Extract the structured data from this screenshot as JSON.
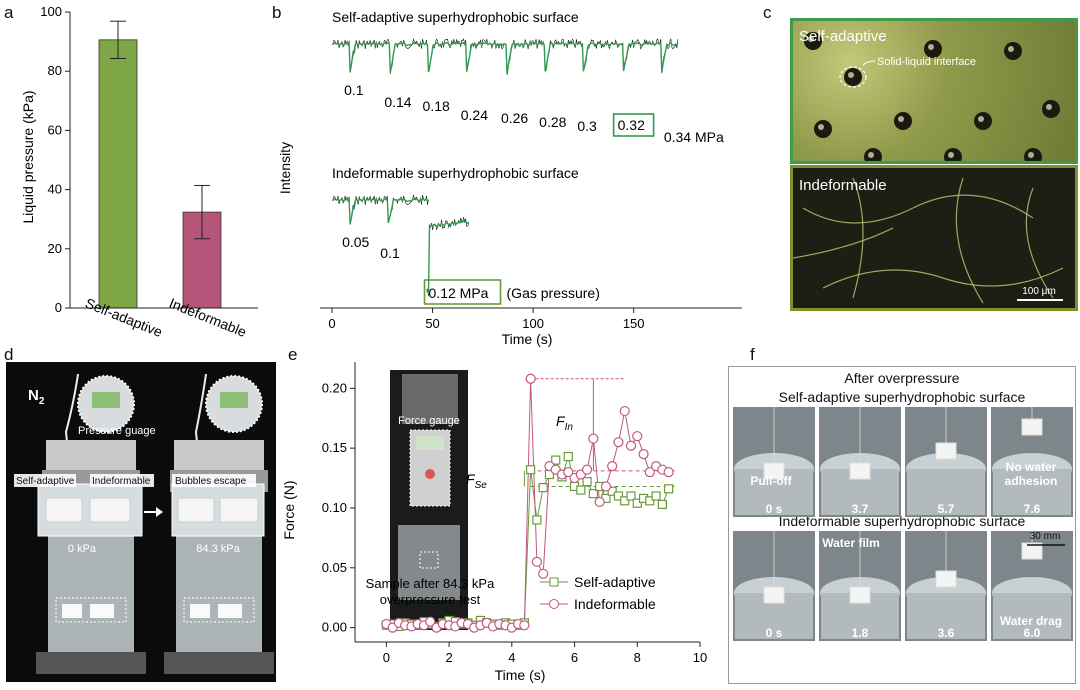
{
  "panels": {
    "a": "a",
    "b": "b",
    "c": "c",
    "d": "d",
    "e": "e",
    "f": "f"
  },
  "chart_data": [
    {
      "id": "a",
      "type": "bar",
      "categories": [
        "Self-adaptive",
        "Indeformable"
      ],
      "values": [
        90.6,
        32.4
      ],
      "errors": [
        6.3,
        9.0
      ],
      "colors": [
        "#7ea646",
        "#b5557a"
      ],
      "ylabel": "Liquid pressure (kPa)",
      "ylim": [
        0,
        100
      ],
      "yticks": [
        "0",
        "20",
        "40",
        "60",
        "80",
        "100"
      ]
    },
    {
      "id": "b",
      "type": "line",
      "top_title": "Self-adaptive superhydrophobic surface",
      "bottom_title": "Indeformable superhydrophobic surface",
      "ylabel": "Intensity",
      "xlabel": "Time (s)",
      "xlim": [
        -5,
        185
      ],
      "xticks": [
        "0",
        "50",
        "100",
        "150"
      ],
      "top_dips": [
        {
          "t": 9,
          "label": "0.1"
        },
        {
          "t": 29,
          "label": "0.14"
        },
        {
          "t": 48,
          "label": "0.18"
        },
        {
          "t": 67,
          "label": "0.24"
        },
        {
          "t": 87,
          "label": "0.26"
        },
        {
          "t": 106,
          "label": "0.28"
        },
        {
          "t": 125,
          "label": "0.3"
        },
        {
          "t": 145,
          "label": "0.32"
        },
        {
          "t": 164,
          "label": "0.34 MPa"
        }
      ],
      "bottom_dips": [
        {
          "t": 9,
          "label": "0.05"
        },
        {
          "t": 28,
          "label": "0.1"
        },
        {
          "t": 47,
          "label": "0.12 MPa"
        }
      ],
      "boxed_top": "0.32",
      "bottom_note": "(Gas pressure)"
    },
    {
      "id": "e",
      "type": "line",
      "xlabel": "Time (s)",
      "ylabel": "Force (N)",
      "xlim": [
        -1,
        10
      ],
      "ylim": [
        -0.012,
        0.222
      ],
      "xticks": [
        "0",
        "2",
        "4",
        "6",
        "8",
        "10"
      ],
      "yticks": [
        "0.00",
        "0.05",
        "0.10",
        "0.15",
        "0.20"
      ],
      "series": [
        {
          "name": "Self-adaptive",
          "color": "#6a9a3a",
          "marker": "square",
          "x": [
            0,
            0.2,
            0.4,
            0.6,
            0.8,
            1,
            1.2,
            1.4,
            1.6,
            1.8,
            2,
            2.2,
            2.4,
            2.6,
            2.8,
            3,
            3.2,
            3.4,
            3.6,
            3.8,
            4,
            4.2,
            4.4,
            4.6,
            4.8,
            5,
            5.2,
            5.4,
            5.6,
            5.8,
            6,
            6.2,
            6.4,
            6.6,
            6.8,
            7,
            7.2,
            7.4,
            7.6,
            7.8,
            8,
            8.2,
            8.4,
            8.6,
            8.8,
            9
          ],
          "y": [
            0.002,
            0.003,
            0.001,
            0.004,
            0.003,
            0.002,
            0.005,
            0.003,
            0.001,
            0.004,
            0.006,
            0.005,
            0.003,
            0.004,
            0.002,
            0.006,
            0.004,
            0.003,
            0.002,
            0.004,
            0.003,
            0.002,
            0.004,
            0.132,
            0.09,
            0.117,
            0.128,
            0.14,
            0.126,
            0.143,
            0.118,
            0.115,
            0.122,
            0.112,
            0.118,
            0.108,
            0.114,
            0.11,
            0.106,
            0.11,
            0.104,
            0.108,
            0.106,
            0.11,
            0.103,
            0.116
          ]
        },
        {
          "name": "Indeformable",
          "color": "#c2587e",
          "marker": "circle",
          "x": [
            0,
            0.2,
            0.4,
            0.6,
            0.8,
            1,
            1.2,
            1.4,
            1.6,
            1.8,
            2,
            2.2,
            2.4,
            2.6,
            2.8,
            3,
            3.2,
            3.4,
            3.6,
            3.8,
            4,
            4.2,
            4.4,
            4.6,
            4.8,
            5,
            5.2,
            5.4,
            5.6,
            5.8,
            6,
            6.2,
            6.4,
            6.6,
            6.8,
            7,
            7.2,
            7.4,
            7.6,
            7.8,
            8,
            8.2,
            8.4,
            8.6,
            8.8,
            9
          ],
          "y": [
            0.003,
            0.0,
            0.004,
            0.002,
            0.001,
            0.003,
            0.002,
            0.005,
            0.0,
            0.003,
            0.002,
            0.001,
            0.004,
            0.003,
            0.0,
            0.002,
            0.004,
            0.001,
            0.003,
            0.002,
            0.0,
            0.003,
            0.002,
            0.208,
            0.055,
            0.045,
            0.135,
            0.132,
            0.128,
            0.13,
            0.125,
            0.128,
            0.132,
            0.158,
            0.105,
            0.118,
            0.135,
            0.155,
            0.181,
            0.152,
            0.16,
            0.145,
            0.13,
            0.135,
            0.132,
            0.13
          ]
        }
      ],
      "ref_lines": [
        {
          "y": 0.118,
          "color": "#6a9a3a"
        },
        {
          "y": 0.131,
          "color": "#c2587e"
        }
      ],
      "legend_position": "bottom-right",
      "annotations": {
        "f_in": "F",
        "f_in_sub": "In",
        "f_se": "F",
        "f_se_sub": "Se"
      }
    }
  ],
  "panel_c": {
    "top_label": "Self-adaptive",
    "top_callout": "Solid-liquid interface",
    "bottom_label": "Indeformable",
    "scale_bar": "100 μm",
    "top_border": "#3f9a4a",
    "bottom_border": "#7f8f2e"
  },
  "panel_d": {
    "gas": "N",
    "gas_sub": "2",
    "gauge_label": "Pressure guage",
    "left_tags": [
      "Self-adaptive",
      "Indeformable"
    ],
    "left_reading": "0 kPa",
    "right_tag": "Bubbles escape",
    "right_reading": "84.3 kPa"
  },
  "panel_e_inset": {
    "gauge_label": "Force gauge",
    "caption_line1": "Sample after 84.3 kPa",
    "caption_line2": "overpressure test"
  },
  "panel_f": {
    "title": "After overpressure",
    "row1_title": "Self-adaptive superhydrophobic surface",
    "row2_title": "Indeformable superhydrophobic surface",
    "row1_times": [
      "0 s",
      "3.7",
      "5.7",
      "7.6"
    ],
    "row2_times": [
      "0 s",
      "1.8",
      "3.6",
      "6.0"
    ],
    "pull_off": "Pull-off",
    "no_water": "No water",
    "adhesion": "adhesion",
    "water_film": "Water film",
    "water_drag": "Water drag",
    "scale": "30 mm"
  }
}
